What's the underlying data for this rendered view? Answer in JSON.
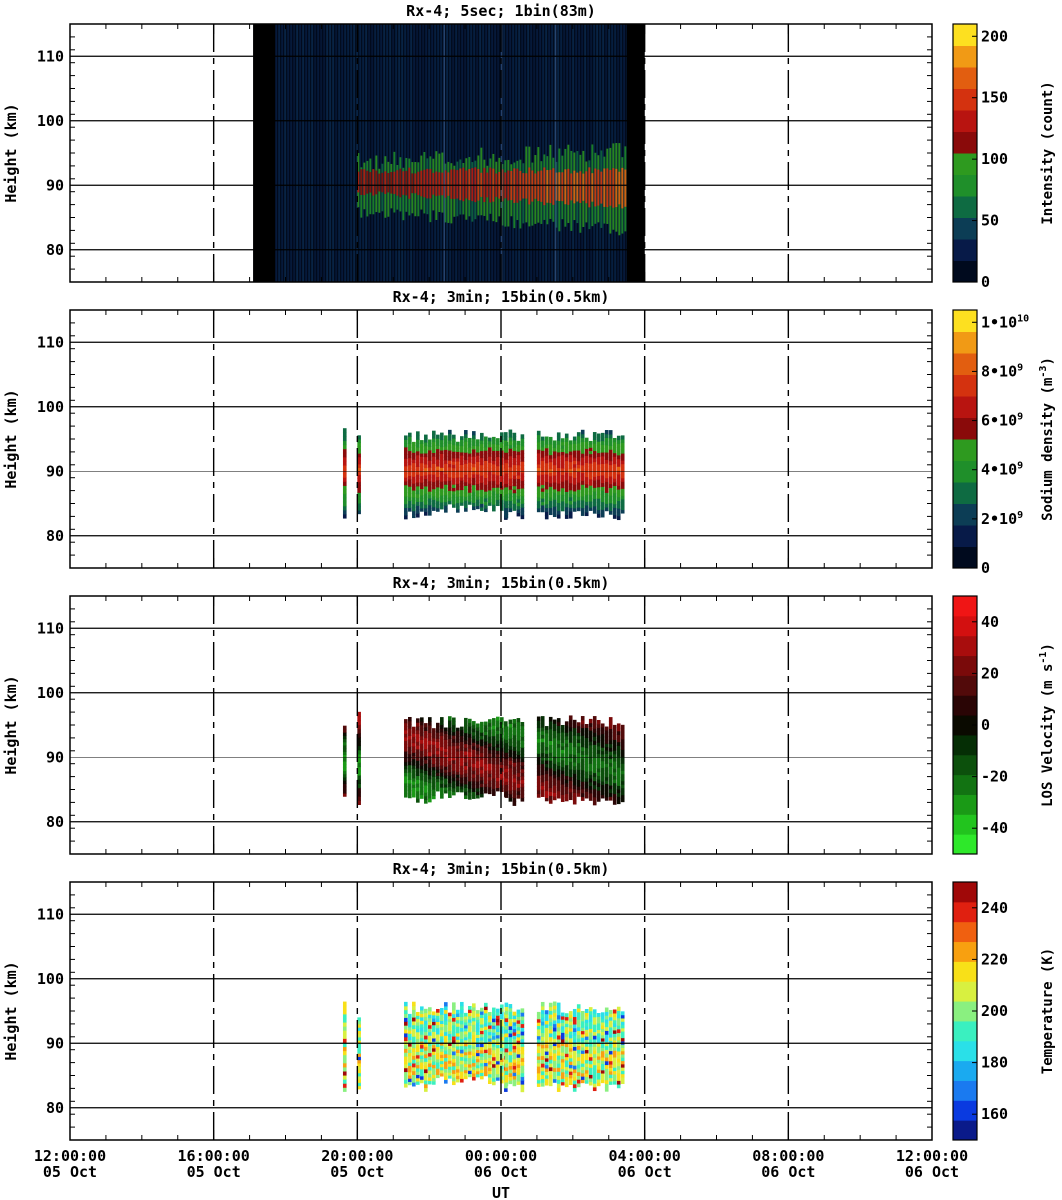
{
  "xaxis": {
    "label": "UT",
    "range_hours": [
      12,
      36
    ],
    "ticks": [
      {
        "hour": 12,
        "time": "12:00:00",
        "date": "05 Oct"
      },
      {
        "hour": 16,
        "time": "16:00:00",
        "date": "05 Oct"
      },
      {
        "hour": 20,
        "time": "20:00:00",
        "date": "05 Oct"
      },
      {
        "hour": 24,
        "time": "00:00:00",
        "date": "06 Oct"
      },
      {
        "hour": 28,
        "time": "04:00:00",
        "date": "06 Oct"
      },
      {
        "hour": 32,
        "time": "08:00:00",
        "date": "06 Oct"
      },
      {
        "hour": 36,
        "time": "12:00:00",
        "date": "06 Oct"
      }
    ]
  },
  "yaxis": {
    "label": "Height (km)",
    "range": [
      75,
      115
    ],
    "ticks": [
      "80",
      "90",
      "100",
      "110"
    ],
    "tick_values": [
      80,
      90,
      100,
      110
    ]
  },
  "panels": [
    {
      "title": "Rx-4;  5sec; 1bin(83m)",
      "colorbar": {
        "label": "Intensity (count)",
        "tick_values": [
          0,
          50,
          100,
          150,
          200
        ],
        "tick_labels": [
          "0",
          "50",
          "100",
          "150",
          "200"
        ],
        "range": [
          0,
          210
        ],
        "colors": [
          "#000a1e",
          "#071a48",
          "#0c3d55",
          "#0e6b42",
          "#1f8f2a",
          "#2e9a1f",
          "#8a0a0a",
          "#b81410",
          "#d4320f",
          "#e25e10",
          "#f19a15",
          "#fde020"
        ]
      }
    },
    {
      "title": "Rx-4; 3min; 15bin(0.5km)",
      "colorbar": {
        "label": "Sodium density (m^-3)",
        "label_main": "Sodium density (m",
        "label_sup": "-3",
        "label_end": ")",
        "tick_values": [
          0,
          2000000000.0,
          4000000000.0,
          6000000000.0,
          8000000000.0,
          10000000000.0
        ],
        "tick_labels": [
          "0",
          "2•10^9",
          "4•10^9",
          "6•10^9",
          "8•10^9",
          "1•10^10"
        ],
        "range": [
          0,
          10500000000.0
        ],
        "colors": [
          "#000a1e",
          "#071a48",
          "#0c3d55",
          "#0e6b42",
          "#1f8f2a",
          "#2e9a1f",
          "#8a0a0a",
          "#b81410",
          "#d4320f",
          "#e25e10",
          "#f19a15",
          "#fde020"
        ]
      }
    },
    {
      "title": "Rx-4; 3min; 15bin(0.5km)",
      "colorbar": {
        "label": "LOS Velocity (m s^-1)",
        "label_main": "LOS Velocity (m s",
        "label_sup": "-1",
        "label_end": ")",
        "tick_values": [
          -40,
          -20,
          0,
          20,
          40
        ],
        "tick_labels": [
          "-40",
          "-20",
          "0",
          "20",
          "40"
        ],
        "range": [
          -50,
          50
        ],
        "colors": [
          "#2ee82a",
          "#22c41e",
          "#1a9a16",
          "#127312",
          "#0c500c",
          "#052e05",
          "#0a0a00",
          "#2a0505",
          "#520a0a",
          "#7a0a0a",
          "#a80d0d",
          "#d31010",
          "#f01515"
        ]
      }
    },
    {
      "title": "Rx-4; 3min; 15bin(0.5km)",
      "colorbar": {
        "label": "Temperature (K)",
        "tick_values": [
          160,
          180,
          200,
          220,
          240
        ],
        "tick_labels": [
          "160",
          "180",
          "200",
          "220",
          "240"
        ],
        "range": [
          150,
          250
        ],
        "colors": [
          "#0a1a8a",
          "#0a3ae0",
          "#1a7af0",
          "#1aaaf0",
          "#2ae0e8",
          "#3af0c0",
          "#8af080",
          "#d8f040",
          "#f8e018",
          "#f8a010",
          "#f06010",
          "#e02010",
          "#a00808"
        ]
      }
    }
  ],
  "chart_data": [
    {
      "type": "heatmap",
      "title": "Rx-4;  5sec; 1bin(83m)",
      "xlabel": "UT",
      "ylabel": "Height (km)",
      "colorbar_label": "Intensity (count)",
      "x_range": [
        "2024-10-05 12:00",
        "2024-10-06 12:00"
      ],
      "x_range_hours": [
        12,
        36
      ],
      "ylim": [
        75,
        115
      ],
      "data_coverage_hours": [
        17.1,
        28.0
      ],
      "bright_stripe_hour": 17.3,
      "layer": {
        "center_km": 90,
        "bottom_km": 83,
        "top_km": 98
      },
      "peak_value": 200
    },
    {
      "type": "heatmap",
      "title": "Rx-4; 3min; 15bin(0.5km)",
      "xlabel": "UT",
      "ylabel": "Height (km)",
      "colorbar_label": "Sodium density (m^-3)",
      "x_range_hours": [
        12,
        36
      ],
      "ylim": [
        75,
        115
      ],
      "data_segments_hours": [
        [
          19.6,
          19.65
        ],
        [
          20.0,
          20.1
        ],
        [
          21.3,
          24.1
        ],
        [
          24.1,
          24.55
        ],
        [
          25.0,
          27.45
        ]
      ],
      "layer": {
        "center_km": 90,
        "bottom_km": 83,
        "top_km": 96
      },
      "peak_value": 7000000000.0
    },
    {
      "type": "heatmap",
      "title": "Rx-4; 3min; 15bin(0.5km)",
      "xlabel": "UT",
      "ylabel": "Height (km)",
      "colorbar_label": "LOS Velocity (m s^-1)",
      "x_range_hours": [
        12,
        36
      ],
      "ylim": [
        75,
        115
      ],
      "data_segments_hours": [
        [
          19.6,
          19.65
        ],
        [
          20.0,
          20.1
        ],
        [
          21.3,
          24.1
        ],
        [
          24.1,
          24.55
        ],
        [
          25.0,
          27.45
        ]
      ],
      "value_range": [
        -40,
        40
      ]
    },
    {
      "type": "heatmap",
      "title": "Rx-4; 3min; 15bin(0.5km)",
      "xlabel": "UT",
      "ylabel": "Height (km)",
      "colorbar_label": "Temperature (K)",
      "x_range_hours": [
        12,
        36
      ],
      "ylim": [
        75,
        115
      ],
      "data_segments_hours": [
        [
          19.6,
          19.65
        ],
        [
          20.0,
          20.1
        ],
        [
          21.3,
          24.1
        ],
        [
          24.1,
          24.55
        ],
        [
          25.0,
          27.45
        ]
      ],
      "value_range": [
        170,
        240
      ]
    }
  ]
}
